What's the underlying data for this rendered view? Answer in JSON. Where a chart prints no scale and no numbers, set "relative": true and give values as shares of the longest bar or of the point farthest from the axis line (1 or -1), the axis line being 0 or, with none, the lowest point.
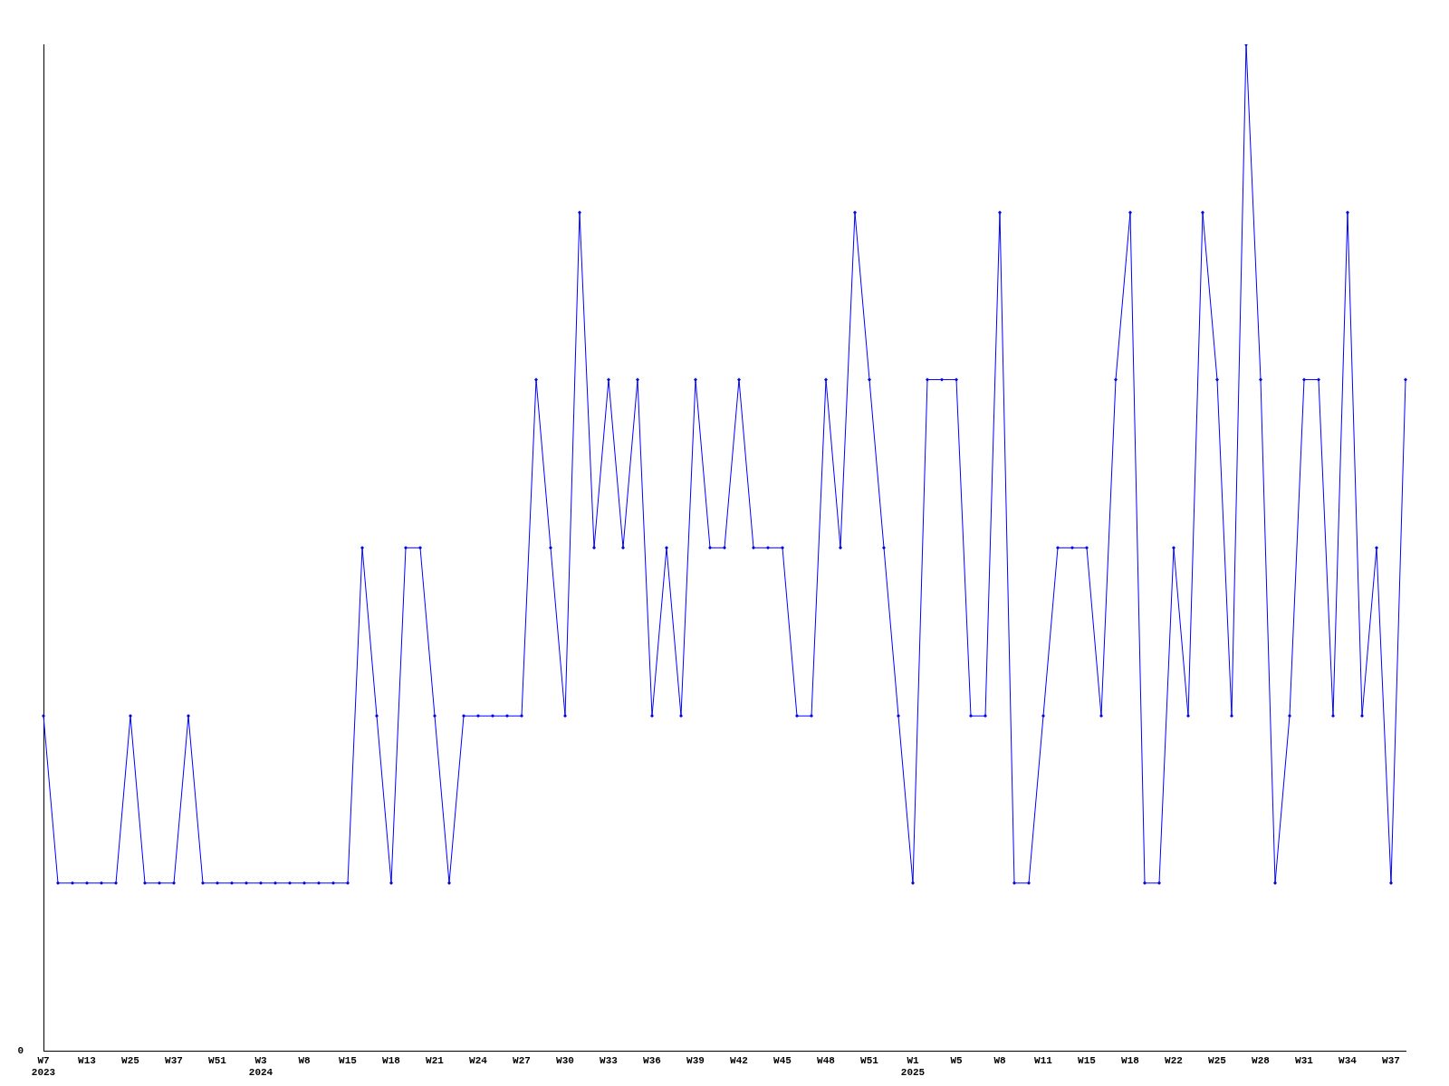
{
  "chart_data": {
    "type": "line",
    "relative": true,
    "marker": "diamond",
    "grid": false,
    "legend": false,
    "annotations": [
      "0"
    ],
    "categories": [
      "W7\n2023",
      null,
      null,
      "W13",
      null,
      null,
      "W25",
      null,
      null,
      "W37",
      null,
      null,
      "W51",
      null,
      null,
      "W3\n2024",
      null,
      null,
      "W8",
      null,
      null,
      "W15",
      null,
      null,
      "W18",
      null,
      null,
      "W21",
      null,
      null,
      "W24",
      null,
      null,
      "W27",
      null,
      null,
      "W30",
      null,
      null,
      "W33",
      null,
      null,
      "W36",
      null,
      null,
      "W39",
      null,
      null,
      "W42",
      null,
      null,
      "W45",
      null,
      null,
      "W48",
      null,
      null,
      "W51",
      null,
      null,
      "W1\n2025",
      null,
      null,
      "W5",
      null,
      null,
      "W8",
      null,
      null,
      "W11",
      null,
      null,
      "W15",
      null,
      null,
      "W18",
      null,
      null,
      "W22",
      null,
      null,
      "W25",
      null,
      null,
      "W28",
      null,
      null,
      "W31",
      null,
      null,
      "W34",
      null,
      null,
      "W37",
      null
    ],
    "series": [
      {
        "color": "#0000ff",
        "values": [
          0.333,
          0.167,
          0.167,
          0.167,
          0.167,
          0.167,
          0.333,
          0.167,
          0.167,
          0.167,
          0.333,
          0.167,
          0.167,
          0.167,
          0.167,
          0.167,
          0.167,
          0.167,
          0.167,
          0.167,
          0.167,
          0.167,
          0.5,
          0.333,
          0.167,
          0.5,
          0.5,
          0.333,
          0.167,
          0.333,
          0.333,
          0.333,
          0.333,
          0.333,
          0.667,
          0.5,
          0.333,
          0.833,
          0.5,
          0.667,
          0.5,
          0.667,
          0.333,
          0.5,
          0.333,
          0.667,
          0.5,
          0.5,
          0.667,
          0.5,
          0.5,
          0.5,
          0.333,
          0.333,
          0.667,
          0.5,
          0.833,
          0.667,
          0.5,
          0.333,
          0.167,
          0.667,
          0.667,
          0.667,
          0.333,
          0.333,
          0.833,
          0.167,
          0.167,
          0.333,
          0.5,
          0.5,
          0.5,
          0.333,
          0.667,
          0.833,
          0.167,
          0.167,
          0.5,
          0.333,
          0.833,
          0.667,
          0.333,
          1,
          0.667,
          0.167,
          0.333,
          0.667,
          0.667,
          0.333,
          0.833,
          0.333,
          0.5,
          0.167,
          0.667
        ]
      }
    ]
  }
}
